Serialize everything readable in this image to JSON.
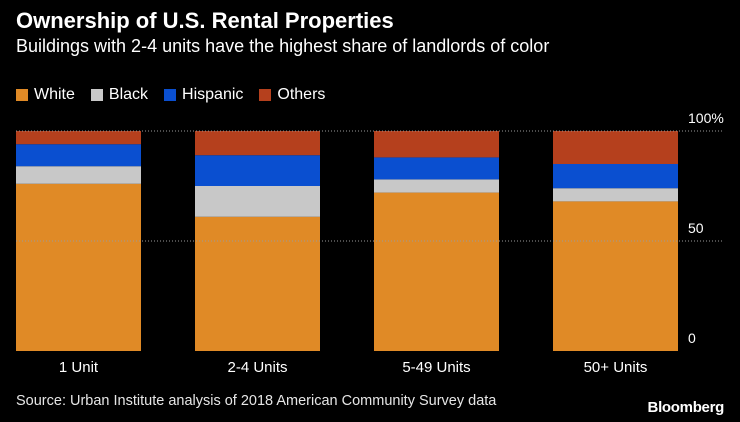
{
  "chart_data": {
    "type": "bar",
    "stacked": true,
    "title": "Ownership of U.S. Rental Properties",
    "subtitle": "Buildings with 2-4 units have the highest share of landlords of color",
    "categories": [
      "1 Unit",
      "2-4 Units",
      "5-49 Units",
      "50+ Units"
    ],
    "series": [
      {
        "name": "White",
        "color": "#e08a26",
        "values": [
          76,
          61,
          72,
          68
        ]
      },
      {
        "name": "Black",
        "color": "#c8c8c8",
        "values": [
          8,
          14,
          6,
          6
        ]
      },
      {
        "name": "Hispanic",
        "color": "#0a4fd0",
        "values": [
          10,
          14,
          10,
          11
        ]
      },
      {
        "name": "Others",
        "color": "#b5401d",
        "values": [
          6,
          11,
          12,
          15
        ]
      }
    ],
    "y_ticks": [
      {
        "value": 100,
        "label": "100%"
      },
      {
        "value": 50,
        "label": "50"
      },
      {
        "value": 0,
        "label": "0"
      }
    ],
    "ylim": [
      0,
      100
    ]
  },
  "source": "Source: Urban Institute analysis of 2018 American Community Survey data",
  "brand": "Bloomberg"
}
